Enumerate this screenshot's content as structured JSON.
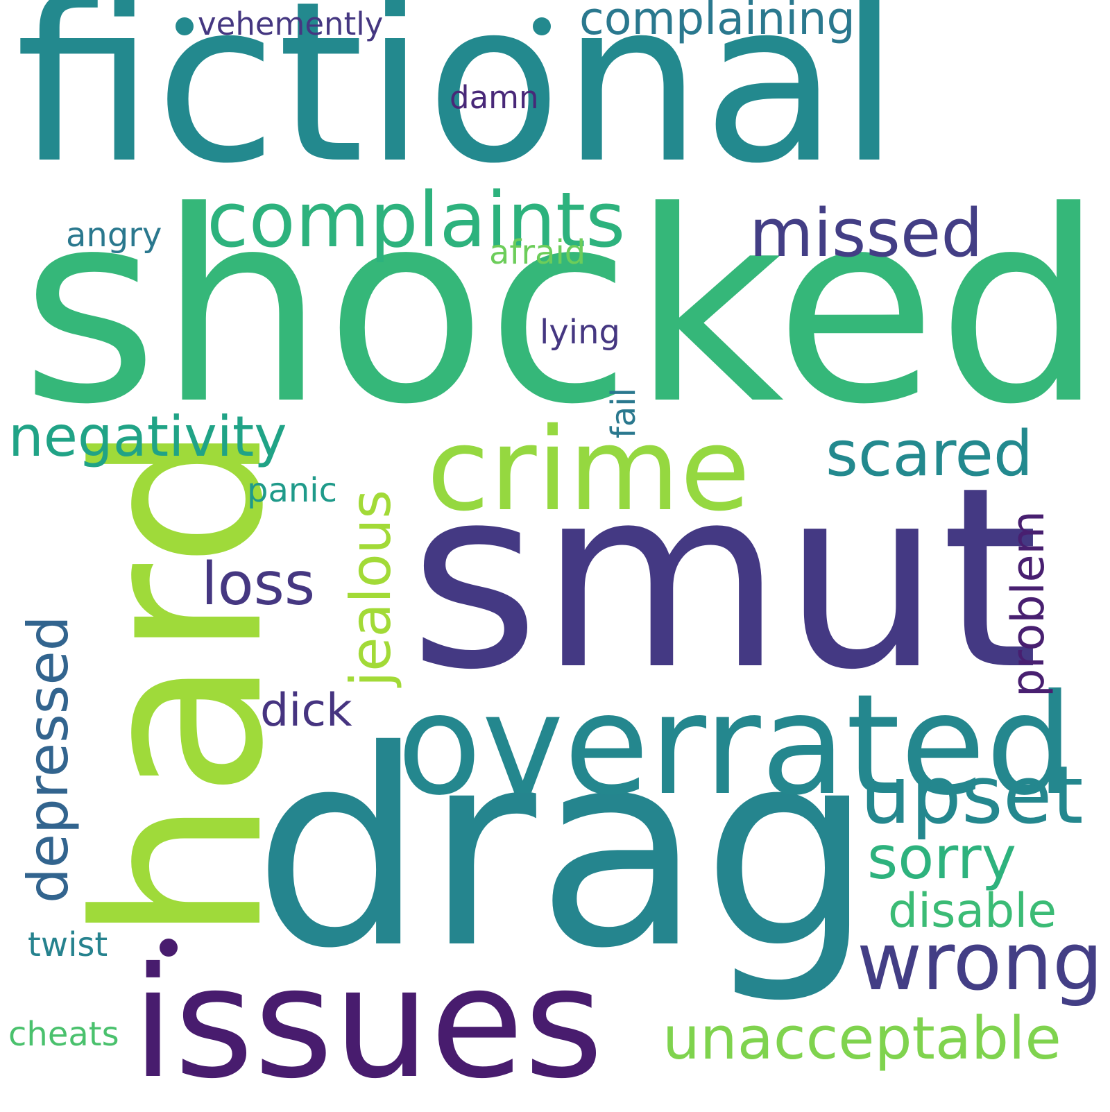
{
  "wordcloud": {
    "background": "#ffffff",
    "words": {
      "fictional": {
        "text": "fictional",
        "color": "#23898e"
      },
      "shocked": {
        "text": "shocked",
        "color": "#35b779"
      },
      "smut": {
        "text": "smut",
        "color": "#443983"
      },
      "drag": {
        "text": "drag",
        "color": "#25858e"
      },
      "hard": {
        "text": "hard",
        "color": "#9fda3a"
      },
      "issues": {
        "text": "issues",
        "color": "#481c6e"
      },
      "overrated": {
        "text": "overrated",
        "color": "#24878e"
      },
      "crime": {
        "text": "crime",
        "color": "#95d840"
      },
      "complaints": {
        "text": "complaints",
        "color": "#2db27d"
      },
      "upset": {
        "text": "upset",
        "color": "#24878e"
      },
      "wrong": {
        "text": "wrong",
        "color": "#433e85"
      },
      "missed": {
        "text": "missed",
        "color": "#433e85"
      },
      "scared": {
        "text": "scared",
        "color": "#23898e"
      },
      "negativity": {
        "text": "negativity",
        "color": "#20a386"
      },
      "jealous": {
        "text": "jealous",
        "color": "#a2da37"
      },
      "loss": {
        "text": "loss",
        "color": "#453781"
      },
      "sorry": {
        "text": "sorry",
        "color": "#2db27d"
      },
      "depressed": {
        "text": "depressed",
        "color": "#32648e"
      },
      "problem": {
        "text": "problem",
        "color": "#481f70"
      },
      "unacceptable": {
        "text": "unacceptable",
        "color": "#7fd34e"
      },
      "disable": {
        "text": "disable",
        "color": "#3bbb75"
      },
      "complaining": {
        "text": "complaining",
        "color": "#2a788e"
      },
      "dick": {
        "text": "dick",
        "color": "#463480"
      },
      "vehemently": {
        "text": "vehemently",
        "color": "#453781"
      },
      "damn": {
        "text": "damn",
        "color": "#482878"
      },
      "angry": {
        "text": "angry",
        "color": "#2a788e"
      },
      "afraid": {
        "text": "afraid",
        "color": "#6ccd5a"
      },
      "lying": {
        "text": "lying",
        "color": "#453781"
      },
      "fail": {
        "text": "fail",
        "color": "#2a788e"
      },
      "panic": {
        "text": "panic",
        "color": "#1f9a8a"
      },
      "twist": {
        "text": "twist",
        "color": "#26828e"
      },
      "cheats": {
        "text": "cheats",
        "color": "#4ac16d"
      }
    }
  }
}
